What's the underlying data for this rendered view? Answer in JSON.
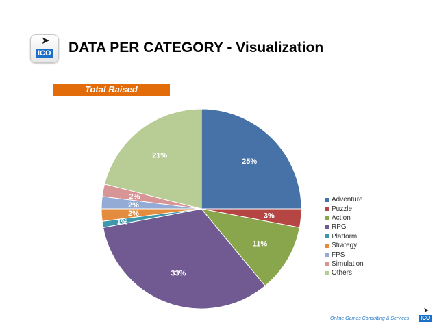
{
  "header": {
    "title": "DATA PER CATEGORY - Visualization",
    "logo_text": "ICO",
    "logo_icon": "runner-icon"
  },
  "badge": {
    "label": "Total Raised"
  },
  "footer": {
    "text": "Online Games Consulting & Services",
    "logo_text": "ICO"
  },
  "chart_data": {
    "type": "pie",
    "title": "",
    "start_angle_deg": 0,
    "direction": "clockwise",
    "categories": [
      "Adventure",
      "Puzzle",
      "Action",
      "RPG",
      "Platform",
      "Strategy",
      "FPS",
      "Simulation",
      "Others"
    ],
    "values": [
      25,
      3,
      11,
      33,
      1,
      2,
      2,
      2,
      21
    ],
    "labels": [
      "25%",
      "3%",
      "11%",
      "33%",
      "1%",
      "2%",
      "2%",
      "2%",
      "21%"
    ],
    "colors": [
      "#4672a8",
      "#b64643",
      "#8aa64c",
      "#715a91",
      "#3e98ad",
      "#e38c3d",
      "#94abd6",
      "#d89596",
      "#b8cd96"
    ],
    "legend_position": "right"
  }
}
